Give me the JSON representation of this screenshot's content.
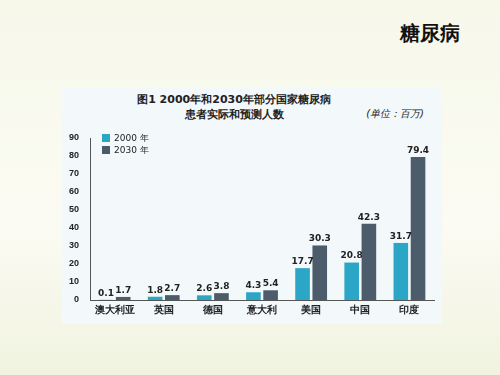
{
  "slide_title": "糖尿病",
  "chart_data": {
    "type": "bar",
    "title": "图1 2000年和2030年部分国家糖尿病患者实际和预测人数",
    "subtitle": "(单位：百万)",
    "categories": [
      "澳大利亚",
      "英国",
      "德国",
      "意大利",
      "美国",
      "中国",
      "印度"
    ],
    "series": [
      {
        "name": "2000 年",
        "color": "#2ba6c6",
        "values": [
          0.1,
          1.8,
          2.6,
          4.3,
          17.7,
          20.8,
          31.7
        ]
      },
      {
        "name": "2030 年",
        "color": "#4d5c6b",
        "values": [
          1.7,
          2.7,
          3.8,
          5.4,
          30.3,
          42.3,
          79.4
        ]
      }
    ],
    "ylim": [
      0,
      90
    ],
    "yticks": [
      0,
      10,
      20,
      30,
      40,
      50,
      60,
      70,
      80,
      90
    ],
    "grid": false,
    "legend": "upper left",
    "data_labels": true
  }
}
